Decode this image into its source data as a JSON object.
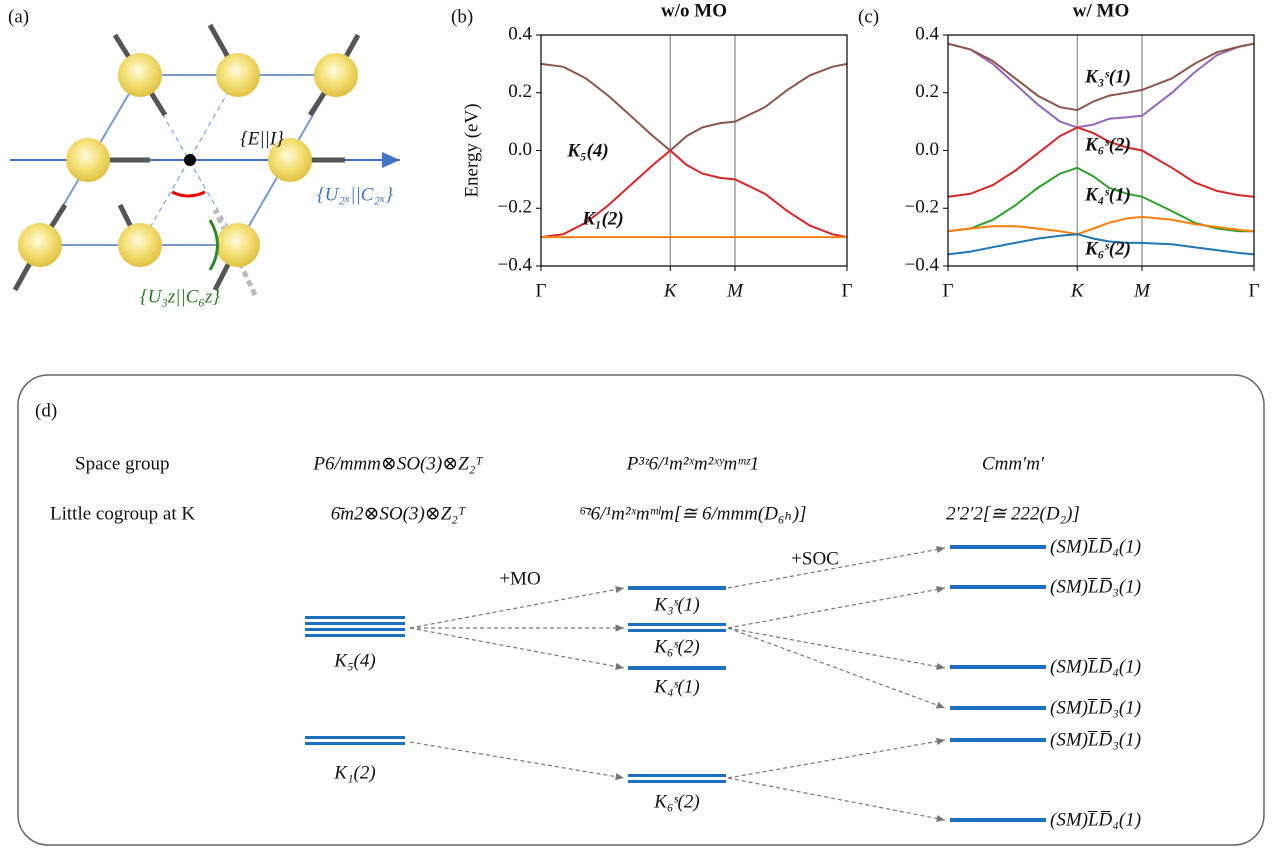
{
  "panel_a": {
    "label": "(a)",
    "annotations": [
      "{E||I}",
      "{U₂ₓ||C₂ₓ}",
      "{U₃z||C₆z}"
    ]
  },
  "chart_data": [
    {
      "type": "line",
      "panel_label": "(b)",
      "title": "w/o MO",
      "ylabel": "Energy (eV)",
      "x": [
        0,
        0.1,
        0.2,
        0.3,
        0.4,
        0.5,
        0.577,
        0.65,
        0.72,
        0.8,
        0.866,
        1.0,
        1.1,
        1.2,
        1.3,
        1.366
      ],
      "xlim": [
        0,
        1.366
      ],
      "xticks": [
        {
          "value": 0,
          "label": "Γ"
        },
        {
          "value": 0.577,
          "label": "K"
        },
        {
          "value": 0.866,
          "label": "M"
        },
        {
          "value": 1.366,
          "label": "Γ"
        }
      ],
      "ylim": [
        -0.4,
        0.4
      ],
      "yticks": [
        {
          "value": -0.4,
          "label": "−0.4"
        },
        {
          "value": -0.2,
          "label": "−0.2"
        },
        {
          "value": 0,
          "label": "0.0"
        },
        0.2,
        0.4
      ],
      "series": [
        {
          "color": "#8c564b",
          "values": [
            0.3,
            0.29,
            0.25,
            0.19,
            0.12,
            0.05,
            0.0,
            0.05,
            0.08,
            0.095,
            0.1,
            0.15,
            0.21,
            0.26,
            0.29,
            0.3
          ]
        },
        {
          "color": "#d62728",
          "values": [
            -0.3,
            -0.29,
            -0.25,
            -0.19,
            -0.12,
            -0.05,
            0.0,
            -0.05,
            -0.08,
            -0.095,
            -0.1,
            -0.15,
            -0.21,
            -0.26,
            -0.29,
            -0.3
          ]
        },
        {
          "color": "#ff7f0e",
          "values": [
            -0.3,
            -0.3,
            -0.3,
            -0.3,
            -0.3,
            -0.3,
            -0.3,
            -0.3,
            -0.3,
            -0.3,
            -0.3,
            -0.3,
            -0.3,
            -0.3,
            -0.3,
            -0.3
          ]
        }
      ],
      "annotations": [
        "K₅(4)",
        "K₁(2)"
      ]
    },
    {
      "type": "line",
      "panel_label": "(c)",
      "title": "w/ MO",
      "x": [
        0,
        0.1,
        0.2,
        0.3,
        0.4,
        0.5,
        0.577,
        0.65,
        0.72,
        0.8,
        0.866,
        1.0,
        1.1,
        1.2,
        1.3,
        1.366
      ],
      "xlim": [
        0,
        1.366
      ],
      "xticks": [
        {
          "value": 0,
          "label": "Γ"
        },
        {
          "value": 0.577,
          "label": "K"
        },
        {
          "value": 0.866,
          "label": "M"
        },
        {
          "value": 1.366,
          "label": "Γ"
        }
      ],
      "ylim": [
        -0.4,
        0.4
      ],
      "yticks": [
        {
          "value": -0.4,
          "label": "−0.4"
        },
        {
          "value": -0.2,
          "label": "−0.2"
        },
        {
          "value": 0,
          "label": "0.0"
        },
        0.2,
        0.4
      ],
      "series": [
        {
          "color": "#9467bd",
          "values": [
            0.37,
            0.35,
            0.3,
            0.23,
            0.16,
            0.1,
            0.08,
            0.09,
            0.11,
            0.115,
            0.12,
            0.2,
            0.27,
            0.33,
            0.36,
            0.37
          ]
        },
        {
          "color": "#8c564b",
          "values": [
            0.37,
            0.35,
            0.31,
            0.25,
            0.19,
            0.15,
            0.14,
            0.17,
            0.19,
            0.2,
            0.21,
            0.25,
            0.3,
            0.34,
            0.36,
            0.37
          ]
        },
        {
          "color": "#d62728",
          "values": [
            -0.16,
            -0.15,
            -0.12,
            -0.07,
            -0.01,
            0.05,
            0.08,
            0.06,
            0.03,
            0.01,
            0.0,
            -0.06,
            -0.11,
            -0.14,
            -0.155,
            -0.16
          ]
        },
        {
          "color": "#2ca02c",
          "values": [
            -0.28,
            -0.27,
            -0.24,
            -0.19,
            -0.13,
            -0.08,
            -0.06,
            -0.09,
            -0.13,
            -0.15,
            -0.16,
            -0.21,
            -0.25,
            -0.27,
            -0.28,
            -0.28
          ]
        },
        {
          "color": "#ff7f0e",
          "values": [
            -0.28,
            -0.27,
            -0.262,
            -0.262,
            -0.27,
            -0.28,
            -0.29,
            -0.27,
            -0.25,
            -0.235,
            -0.23,
            -0.24,
            -0.255,
            -0.265,
            -0.275,
            -0.28
          ]
        },
        {
          "color": "#1f77b4",
          "values": [
            -0.36,
            -0.35,
            -0.335,
            -0.32,
            -0.305,
            -0.295,
            -0.29,
            -0.305,
            -0.315,
            -0.32,
            -0.32,
            -0.325,
            -0.335,
            -0.345,
            -0.355,
            -0.36
          ]
        }
      ],
      "annotations": [
        "K₃ˢ(1)",
        "K₆ˢ(2)",
        "K₄ˢ(1)",
        "K₆ˢ(2)"
      ]
    }
  ],
  "panel_d": {
    "label": "(d)",
    "rows": [
      {
        "label": "Space group",
        "cells": [
          "P6/mmm⊗SO(3)⊗Z₂ᵀ",
          "P³ᶻ6/¹m²ˣm²ˣʸmᵐᶻ1",
          "Cmm′m′"
        ]
      },
      {
        "label": "Little cogroup at K",
        "cells": [
          "6̄m2⊗SO(3)⊗Z₂ᵀ",
          "⁶̄ᶻ6/¹m²ˣmᵐˡm[≅ 6/mmm(D₆ₕ)]",
          "2′2′2[≅ 222(D₂)]"
        ]
      }
    ],
    "steps": [
      "+MO",
      "+SOC"
    ],
    "left": [
      "K₅(4)",
      "K₁(2)"
    ],
    "middle": [
      "K₃ˢ(1)",
      "K₆ˢ(2)",
      "K₄ˢ(1)",
      "K₆ˢ(2)"
    ],
    "right": [
      "(SM)L̅D̅₄(1)",
      "(SM)L̅D̅₃(1)",
      "(SM)L̅D̅₄(1)",
      "(SM)L̅D̅₃(1)",
      "(SM)L̅D̅₃(1)",
      "(SM)L̅D̅₄(1)"
    ]
  }
}
